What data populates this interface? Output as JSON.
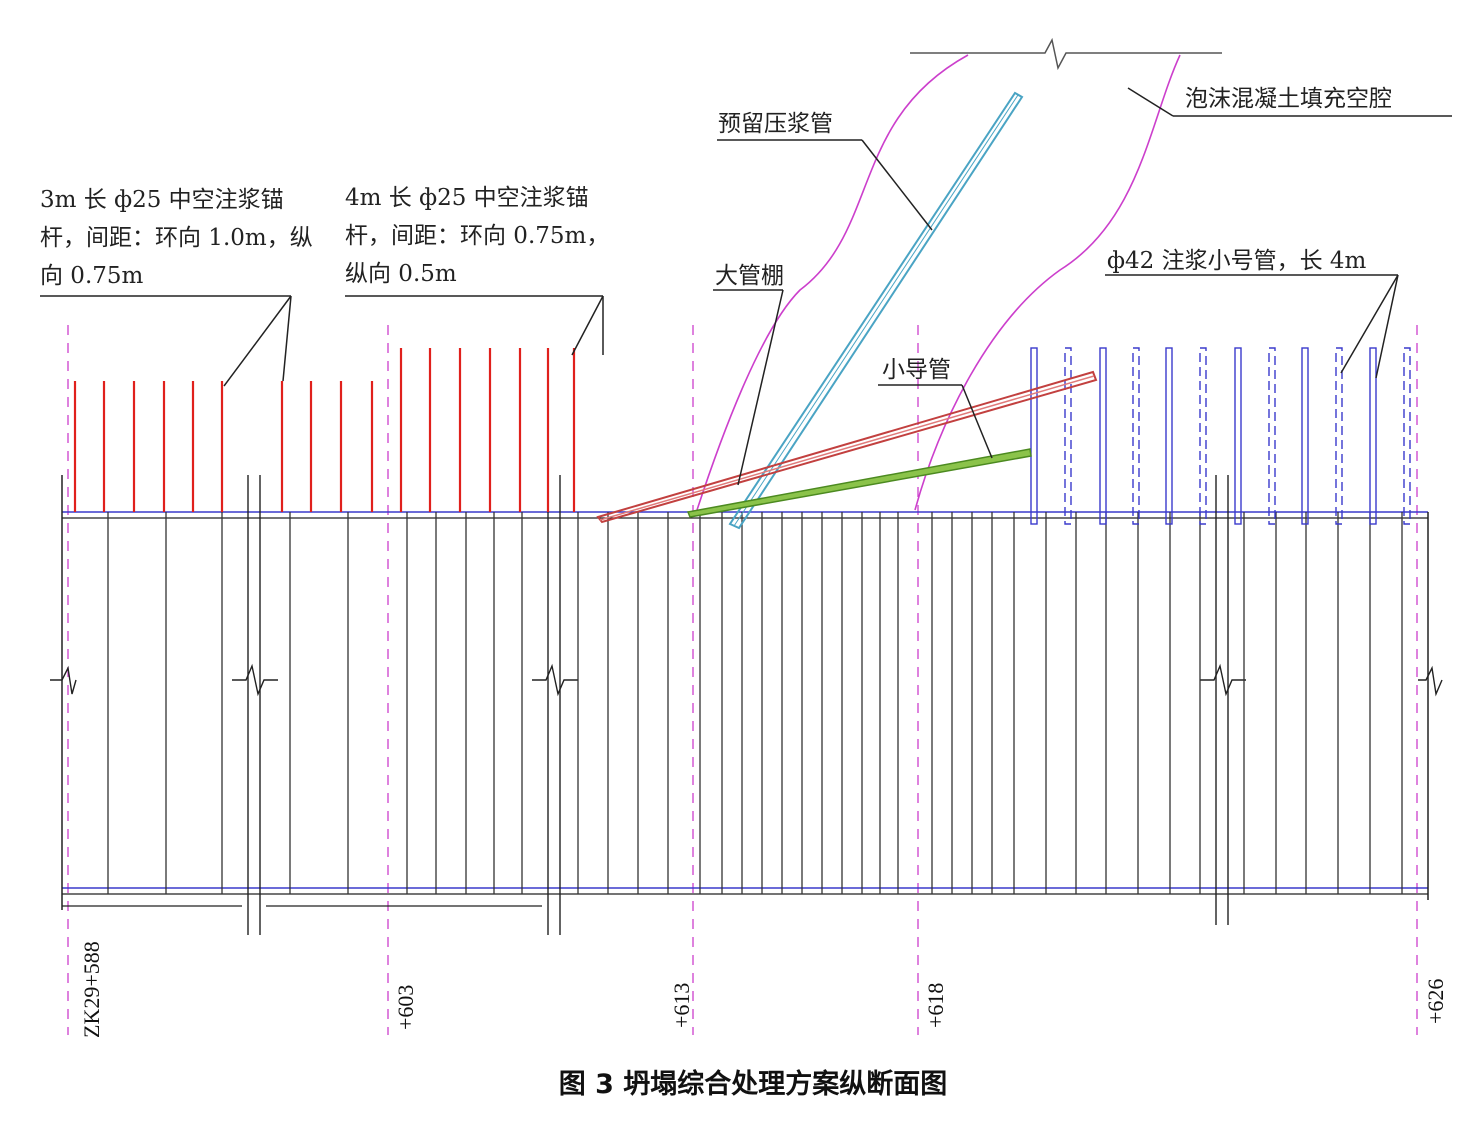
{
  "figure": {
    "caption": "图 3 坍塌综合处理方案纵断面图",
    "colors": {
      "anchor": "#e0201c",
      "pipe_42": "#3a3acc",
      "grout_reserved": "#4aa4c4",
      "big_pipe_roof": "#c2403f",
      "small_duct": "#5a9a2c",
      "foam_boundary": "#cc3fcc",
      "guide_line": "#cc3fcc",
      "structure": "#222222",
      "leader": "#222222"
    },
    "labels": {
      "anchor_3m_line1": "3m 长 ф25 中空注浆锚",
      "anchor_3m_line2": "杆，间距：环向 1.0m，纵",
      "anchor_3m_line3": "向 0.75m",
      "anchor_4m_line1": "4m 长 ф25 中空注浆锚",
      "anchor_4m_line2": "杆，间距：环向 0.75m，",
      "anchor_4m_line3": "纵向 0.5m",
      "big_pipe_roof": "大管棚",
      "reserved_grout_pipe": "预留压浆管",
      "small_duct": "小导管",
      "foam_concrete": "泡沫混凝土填充空腔",
      "pipe_42": "ф42 注浆小号管，长 4m"
    },
    "stations": [
      "ZK29+588",
      "+603",
      "+613",
      "+618",
      "+626"
    ]
  }
}
